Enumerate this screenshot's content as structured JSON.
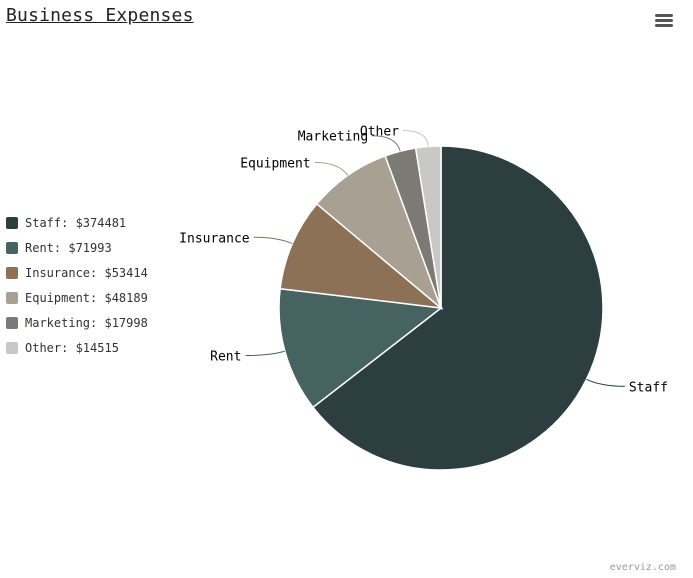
{
  "title": "Business Expenses",
  "credit": "everviz.com",
  "menu_icon": "hamburger-menu-icon",
  "chart_data": {
    "type": "pie",
    "title": "Business Expenses",
    "legend_position": "left",
    "categories": [
      "Staff",
      "Rent",
      "Insurance",
      "Equipment",
      "Marketing",
      "Other"
    ],
    "values": [
      374481,
      71993,
      53414,
      48189,
      17998,
      14515
    ],
    "colors": [
      "#2d3e40",
      "#466361",
      "#8c7157",
      "#a8a092",
      "#7c7a74",
      "#c8c8c4"
    ],
    "legend_labels": [
      "Staff: $374481",
      "Rent: $71993",
      "Insurance: $53414",
      "Equipment: $48189",
      "Marketing: $17998",
      "Other: $14515"
    ]
  }
}
